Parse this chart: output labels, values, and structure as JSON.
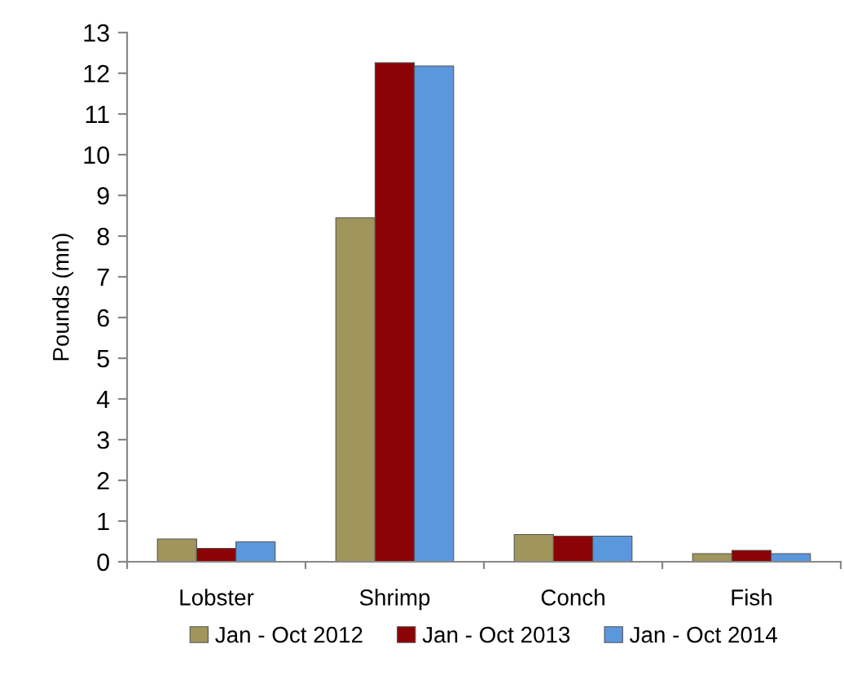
{
  "chart_data": {
    "type": "bar",
    "ylabel": "Pounds (mn)",
    "categories": [
      "Lobster",
      "Shrimp",
      "Conch",
      "Fish"
    ],
    "series": [
      {
        "name": "Jan - Oct 2012",
        "color": "#a0955b",
        "values": [
          0.56,
          8.45,
          0.67,
          0.2
        ]
      },
      {
        "name": "Jan - Oct 2013",
        "color": "#8b0306",
        "values": [
          0.33,
          12.26,
          0.63,
          0.28
        ]
      },
      {
        "name": "Jan - Oct 2014",
        "color": "#5b97dd",
        "values": [
          0.49,
          12.18,
          0.63,
          0.2
        ]
      }
    ],
    "ylim": [
      0,
      13
    ],
    "yticks": [
      0,
      1,
      2,
      3,
      4,
      5,
      6,
      7,
      8,
      9,
      10,
      11,
      12,
      13
    ],
    "grid": false,
    "legend": "bottom"
  }
}
